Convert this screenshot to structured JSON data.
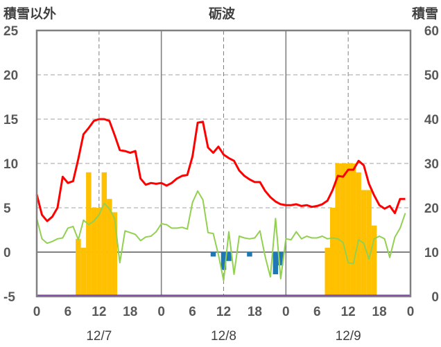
{
  "chart_data": {
    "type": "bar",
    "title": "砺波",
    "ylabel_left": "積雪以外",
    "ylabel_right": "積雪",
    "ylim_left": [
      -5,
      25
    ],
    "ylim_right": [
      0,
      60
    ],
    "yticks_left": [
      "25",
      "20",
      "15",
      "10",
      "5",
      "0",
      "-5"
    ],
    "yticks_right": [
      "60",
      "50",
      "40",
      "30",
      "20",
      "10",
      "0"
    ],
    "xticks": [
      "0",
      "6",
      "12",
      "18",
      "0",
      "6",
      "12",
      "18",
      "0",
      "6",
      "12",
      "18",
      "0"
    ],
    "xtick_hours": [
      0,
      6,
      12,
      18,
      24,
      30,
      36,
      42,
      48,
      54,
      60,
      66,
      72
    ],
    "xlim": [
      0,
      72
    ],
    "dates": [
      "12/7",
      "12/8",
      "12/9"
    ],
    "date_hours": [
      12,
      36,
      60
    ],
    "grid": true,
    "colors": {
      "temperature": "#ff0000",
      "wind": "#92d050",
      "snow_cover": "#ffc000",
      "precipitation": "#1f77b4",
      "baseline": "#7030a0",
      "axis": "#808080"
    },
    "series": [
      {
        "type": "line",
        "axis": "left",
        "x": [
          0,
          1,
          2,
          3,
          4,
          5,
          6,
          7,
          8,
          9,
          10,
          11,
          12,
          13,
          14,
          15,
          16,
          17,
          18,
          19,
          20,
          21,
          22,
          23,
          24,
          25,
          26,
          27,
          28,
          29,
          30,
          31,
          32,
          33,
          34,
          35,
          36,
          37,
          38,
          39,
          40,
          41,
          42,
          43,
          44,
          45,
          46,
          47,
          48,
          49,
          50,
          51,
          52,
          53,
          54,
          55,
          56,
          57,
          58,
          59,
          60,
          61,
          62,
          63,
          64,
          65,
          66,
          67,
          68,
          69,
          70,
          71
        ],
        "values": [
          6.5,
          4.2,
          3.5,
          4.0,
          5.0,
          8.5,
          7.8,
          8.0,
          10.5,
          13.3,
          14.0,
          14.8,
          15.0,
          15.0,
          14.8,
          13.2,
          11.5,
          11.4,
          11.2,
          11.4,
          8.3,
          7.6,
          7.8,
          7.7,
          7.8,
          7.5,
          7.8,
          8.3,
          8.6,
          8.7,
          10.8,
          14.6,
          14.7,
          11.8,
          11.2,
          11.9,
          11.0,
          10.6,
          10.3,
          9.2,
          8.6,
          8.2,
          7.9,
          7.9,
          6.9,
          6.2,
          5.7,
          5.4,
          5.3,
          5.3,
          5.4,
          5.2,
          5.3,
          5.1,
          5.2,
          5.4,
          5.8,
          7.0,
          8.6,
          8.5,
          9.3,
          9.3,
          10.3,
          9.8,
          7.7,
          6.4,
          5.3,
          4.9,
          5.2,
          4.4,
          6.0,
          6.0
        ]
      },
      {
        "type": "line",
        "axis": "left",
        "x": [
          0,
          1,
          2,
          3,
          4,
          5,
          6,
          7,
          8,
          9,
          10,
          11,
          12,
          13,
          14,
          15,
          16,
          17,
          18,
          19,
          20,
          21,
          22,
          23,
          24,
          25,
          26,
          27,
          28,
          29,
          30,
          31,
          32,
          33,
          34,
          35,
          36,
          37,
          38,
          39,
          40,
          41,
          42,
          43,
          44,
          45,
          46,
          47,
          48,
          49,
          50,
          51,
          52,
          53,
          54,
          55,
          56,
          57,
          58,
          59,
          60,
          61,
          62,
          63,
          64,
          65,
          66,
          67,
          68,
          69,
          70,
          71
        ],
        "values": [
          3.8,
          1.5,
          1.0,
          1.2,
          1.5,
          1.6,
          2.7,
          2.9,
          1.4,
          3.6,
          3.1,
          3.5,
          4.2,
          5.5,
          4.9,
          3.8,
          -1.2,
          2.4,
          2.2,
          2.0,
          1.3,
          1.7,
          1.8,
          2.3,
          3.2,
          3.1,
          2.7,
          2.7,
          2.8,
          2.6,
          5.6,
          6.9,
          5.9,
          2.2,
          2.1,
          -0.3,
          -3.2,
          2.3,
          -2.5,
          1.8,
          1.6,
          1.5,
          1.6,
          2.4,
          -0.5,
          -2.8,
          3.8,
          -3.0,
          1.5,
          1.4,
          2.3,
          1.5,
          1.8,
          1.6,
          1.6,
          1.8,
          1.5,
          1.6,
          1.5,
          1.1,
          -1.2,
          -1.3,
          1.4,
          1.0,
          -0.8,
          1.5,
          1.8,
          1.5,
          -0.6,
          1.7,
          2.7,
          4.4
        ]
      },
      {
        "type": "bar",
        "axis": "right",
        "x": [
          8,
          9,
          10,
          11,
          12,
          13,
          14,
          15,
          56,
          57,
          58,
          59,
          60,
          61,
          62,
          63,
          64,
          65
        ],
        "values": [
          13,
          11,
          28,
          20,
          20,
          28,
          22,
          19,
          11,
          20,
          30,
          30,
          30,
          30,
          28,
          24,
          24,
          16
        ]
      },
      {
        "type": "bar",
        "axis": "left",
        "x": [
          34,
          36,
          37,
          41,
          46,
          47
        ],
        "values": [
          -0.5,
          -2.0,
          -1.0,
          -0.5,
          -2.5,
          -1.5
        ]
      }
    ]
  }
}
